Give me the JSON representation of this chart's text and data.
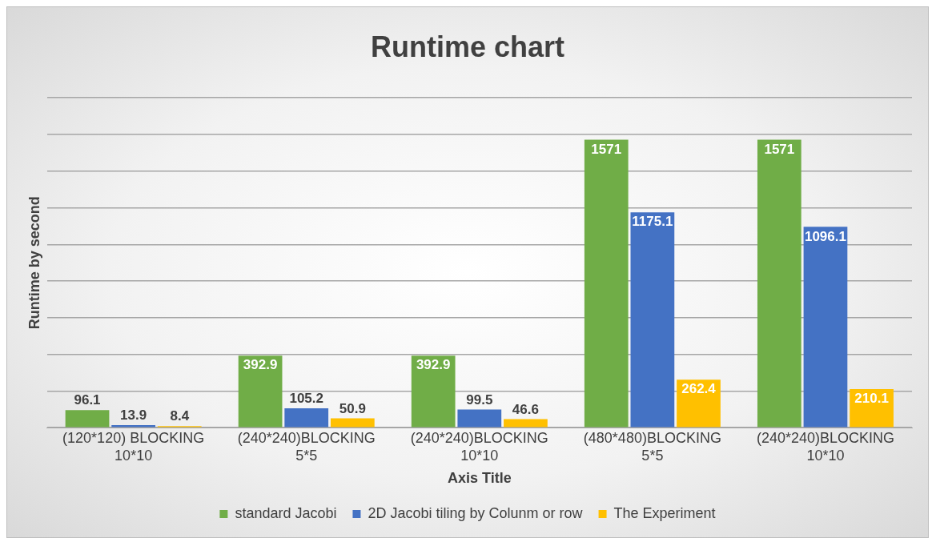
{
  "chart_data": {
    "type": "bar",
    "title": "Runtime chart",
    "xlabel": "Axis Title",
    "ylabel": "Runtime by second",
    "categories": [
      "(120*120) BLOCKING 10*10",
      "(240*240)BLOCKING 5*5",
      "(240*240)BLOCKING 10*10",
      "(480*480)BLOCKING 5*5",
      "(240*240)BLOCKING 10*10"
    ],
    "series": [
      {
        "name": "standard Jacobi",
        "color": "#70ad47",
        "values": [
          96.1,
          392.9,
          392.9,
          1571,
          1571
        ]
      },
      {
        "name": "2D Jacobi tiling by Colunm or row",
        "color": "#4472c4",
        "values": [
          13.9,
          105.2,
          99.5,
          1175.1,
          1096.1
        ]
      },
      {
        "name": "The Experiment",
        "color": "#ffc000",
        "values": [
          8.4,
          50.9,
          46.6,
          262.4,
          210.1
        ]
      }
    ],
    "ylim": [
      0,
      1800
    ],
    "yticks": [
      {
        "value": 0,
        "label": null
      },
      {
        "value": 200,
        "label": null
      },
      {
        "value": 400,
        "label": null
      },
      {
        "value": 600,
        "label": null
      },
      {
        "value": 800,
        "label": null
      },
      {
        "value": 1000,
        "label": null
      },
      {
        "value": 1200,
        "label": null
      },
      {
        "value": 1400,
        "label": null
      },
      {
        "value": 1600,
        "label": null
      },
      {
        "value": 1800,
        "label": null
      }
    ],
    "tick_labels": "x",
    "grid": "y",
    "legend": "bottom",
    "data_labels": true
  }
}
